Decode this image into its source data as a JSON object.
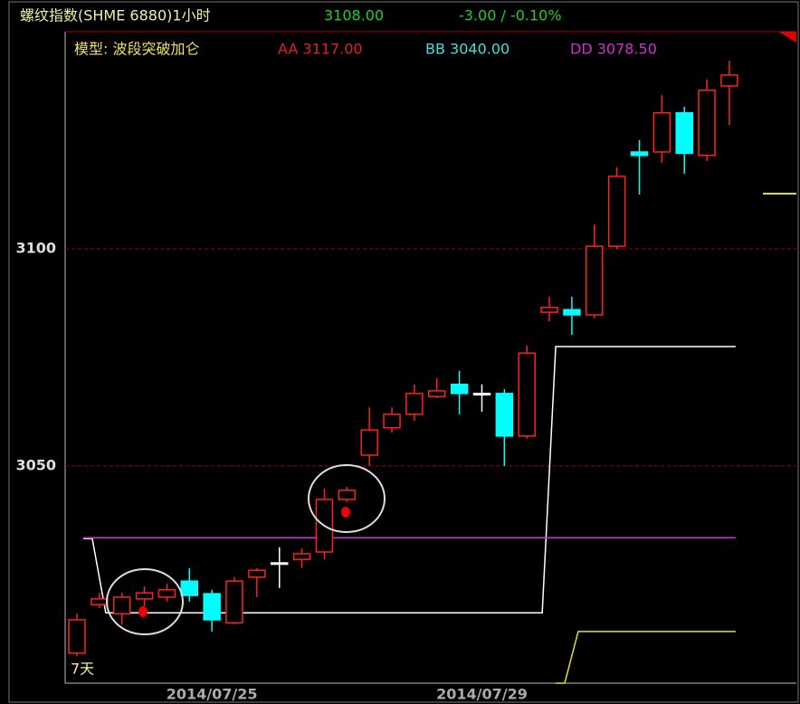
{
  "chart_data": {
    "type": "candlestick",
    "title": "螺纹指数(SHME 6880)1小时",
    "last_price": "3108.00",
    "change": "-3.00 / -0.10%",
    "model_label": "模型: 波段突破加仑",
    "indicators": [
      "AA 3117.00",
      "BB 3040.00",
      "DD 3078.50"
    ],
    "annotation": "7天",
    "categories": [
      null,
      null,
      null,
      null,
      null,
      null,
      "2014/07/25",
      null,
      null,
      null,
      null,
      null,
      null,
      null,
      null,
      null,
      null,
      null,
      "2014/07/29",
      null,
      null,
      null,
      null,
      null,
      null,
      null,
      null,
      null,
      null,
      null
    ],
    "open": [
      3006.9,
      3018.1,
      3016.0,
      3019.4,
      3019.8,
      3023.5,
      3020.6,
      3013.9,
      3024.4,
      3027.7,
      3028.5,
      3030.2,
      3042.3,
      3052.5,
      3058.8,
      3061.9,
      3066.0,
      3068.8,
      3066.7,
      3066.7,
      3056.9,
      3085.4,
      3086.0,
      3084.8,
      3100.6,
      3122.3,
      3122.3,
      3131.3,
      3121.5,
      3137.5
    ],
    "high": [
      3016.0,
      3020.8,
      3020.8,
      3022.3,
      3022.9,
      3026.5,
      3021.5,
      3024.4,
      3026.5,
      3031.3,
      3031.0,
      3044.8,
      3045.2,
      3063.5,
      3063.5,
      3068.8,
      3070.2,
      3071.9,
      3068.8,
      3067.7,
      3077.7,
      3089.0,
      3089.0,
      3105.6,
      3118.8,
      3125.0,
      3135.4,
      3132.7,
      3139.0,
      3143.3
    ],
    "low": [
      3006.2,
      3017.3,
      3013.5,
      3017.7,
      3018.8,
      3018.8,
      3011.9,
      3013.5,
      3019.8,
      3021.9,
      3026.5,
      3028.5,
      3041.7,
      3050.0,
      3057.7,
      3060.4,
      3065.6,
      3061.9,
      3062.5,
      3050.0,
      3056.3,
      3083.3,
      3080.2,
      3084.0,
      3100.0,
      3112.5,
      3119.8,
      3117.3,
      3120.2,
      3128.5
    ],
    "close": [
      3014.6,
      3019.4,
      3019.8,
      3020.8,
      3021.5,
      3020.2,
      3014.6,
      3023.5,
      3026.0,
      3027.7,
      3029.8,
      3042.3,
      3044.4,
      3058.3,
      3061.9,
      3066.7,
      3067.3,
      3066.7,
      3066.7,
      3056.9,
      3076.0,
      3086.5,
      3084.8,
      3100.6,
      3116.7,
      3121.5,
      3131.3,
      3122.0,
      3136.5,
      3140.0
    ],
    "up_color": "#ff2020",
    "down_color": "#00ffff",
    "flat_color": "#ffffff",
    "series": [
      {
        "color": "#ffffff",
        "values": [
          3033.3,
          3016.2,
          3016.2,
          3016.2,
          3016.2,
          3016.2,
          3016.2,
          3016.2,
          3016.2,
          3016.2,
          3016.2,
          3016.2,
          3016.2,
          3016.2,
          3016.2,
          3016.2,
          3016.2,
          3016.2,
          3016.2,
          3016.2,
          3016.2,
          3077.5,
          3077.5,
          3077.5,
          3077.5,
          3077.5,
          3077.5,
          3077.5,
          3077.5,
          3077.5
        ]
      },
      {
        "color": "#cc33cc",
        "values": [
          3033.5,
          3033.5,
          3033.5,
          3033.5,
          3033.5,
          3033.5,
          3033.5,
          3033.5,
          3033.5,
          3033.5,
          3033.5,
          3033.5,
          3033.5,
          3033.5,
          3033.5,
          3033.5,
          3033.5,
          3033.5,
          3033.5,
          3033.5,
          3033.5,
          3033.5,
          3033.5,
          3033.5,
          3033.5,
          3033.5,
          3033.5,
          3033.5,
          3033.5,
          3033.5
        ]
      },
      {
        "color": "#e0e020",
        "values": [
          null,
          null,
          null,
          null,
          null,
          null,
          null,
          null,
          null,
          null,
          null,
          null,
          null,
          null,
          null,
          null,
          null,
          null,
          null,
          null,
          null,
          3000,
          3011.9,
          3011.9,
          3011.9,
          3011.9,
          3011.9,
          3011.9,
          3011.9,
          3011.9
        ]
      }
    ],
    "ylim": [
      3000,
      3150
    ],
    "yticks": [
      3050,
      3100
    ],
    "grid": true
  }
}
